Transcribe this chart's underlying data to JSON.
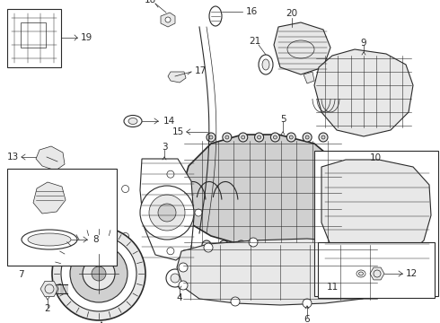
{
  "bg_color": "#ffffff",
  "fig_width": 4.9,
  "fig_height": 3.6,
  "dpi": 100,
  "lc": "#2a2a2a",
  "lc2": "#555555",
  "fc_light": "#e8e8e8",
  "fc_mid": "#d0d0d0",
  "fc_dark": "#b8b8b8",
  "fs_label": 7.5,
  "lw1": 0.5,
  "lw2": 0.8,
  "lw3": 1.2
}
